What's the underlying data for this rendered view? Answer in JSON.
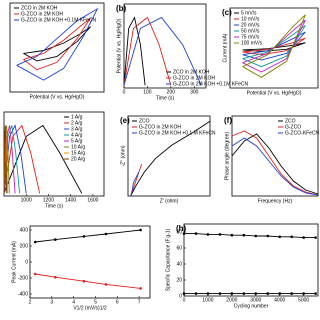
{
  "chart_data": [
    {
      "type": "line",
      "xlabel": "Potential (V vs. Hg/HgO)",
      "xlim": [
        -0.1,
        0.6
      ],
      "ylim": [
        -30,
        30
      ],
      "legend": "upper left",
      "series": [
        {
          "name": "ZCO in 2M KOH",
          "color": "#000000",
          "x": [
            0,
            0.15,
            0.3,
            0.42,
            0.5,
            0.4,
            0.25,
            0.1,
            0
          ],
          "values": [
            -4,
            -2,
            3,
            9,
            14,
            4,
            -6,
            -9,
            -4
          ]
        },
        {
          "name": "G-ZCO in 2M KOH",
          "color": "#e0201b",
          "x": [
            0,
            0.15,
            0.3,
            0.42,
            0.5,
            0.4,
            0.25,
            0.1,
            0
          ],
          "values": [
            -8,
            -4,
            5,
            14,
            20,
            6,
            -10,
            -15,
            -8
          ]
        },
        {
          "name": "G-ZCO in 2M KOH +0.1M KFeCN",
          "color": "#1f3fd0",
          "x": [
            -0.05,
            0.1,
            0.25,
            0.4,
            0.55,
            0.45,
            0.3,
            0.15,
            -0.05
          ],
          "values": [
            -12,
            -6,
            6,
            18,
            26,
            8,
            -14,
            -22,
            -12
          ]
        }
      ]
    },
    {
      "type": "line",
      "panel_label": "(b)",
      "ylabel": "Potential (V vs. Hg/HgO)",
      "xlabel": "Time (s)",
      "xlim": [
        0,
        350
      ],
      "ylim": [
        -0.02,
        0.6
      ],
      "xticks": [
        0,
        100,
        200,
        300
      ],
      "legend": "lower right",
      "series": [
        {
          "name": "ZCO in 2M KOH",
          "color": "#000000",
          "x": [
            0,
            20,
            45,
            70,
            90
          ],
          "values": [
            0,
            0.42,
            0.5,
            0.3,
            0
          ]
        },
        {
          "name": "G-ZCO in 2M KOH",
          "color": "#e0201b",
          "x": [
            0,
            40,
            100,
            150,
            200
          ],
          "values": [
            0,
            0.42,
            0.5,
            0.3,
            0
          ]
        },
        {
          "name": "G-ZCO in 2M KOH +0.1M KFeCN",
          "color": "#1f3fd0",
          "x": [
            0,
            70,
            160,
            250,
            330
          ],
          "values": [
            0,
            0.42,
            0.5,
            0.3,
            0
          ]
        }
      ]
    },
    {
      "type": "line",
      "panel_label": "(c)",
      "ylabel": "Current (mA)",
      "xlabel": "Potential (V vs. Hg/HgO)",
      "xlim": [
        -0.1,
        0.6
      ],
      "ylim": [
        -60,
        60
      ],
      "legend": "upper left",
      "series": [
        {
          "name": "5 mV/s",
          "color": "#000000",
          "x": [
            0,
            0.2,
            0.4,
            0.5,
            0.35,
            0.15,
            0
          ],
          "values": [
            -3,
            -1,
            4,
            8,
            -2,
            -5,
            -3
          ]
        },
        {
          "name": "10 mV/s",
          "color": "#e0201b",
          "x": [
            0,
            0.2,
            0.4,
            0.5,
            0.35,
            0.15,
            0
          ],
          "values": [
            -6,
            -2,
            8,
            15,
            -4,
            -10,
            -6
          ]
        },
        {
          "name": "20 mV/s",
          "color": "#1f3fd0",
          "x": [
            0,
            0.2,
            0.4,
            0.5,
            0.35,
            0.15,
            0
          ],
          "values": [
            -10,
            -4,
            14,
            24,
            -8,
            -18,
            -10
          ]
        },
        {
          "name": "50 mV/s",
          "color": "#0a9c9c",
          "x": [
            0,
            0.2,
            0.4,
            0.5,
            0.35,
            0.15,
            0
          ],
          "values": [
            -16,
            -6,
            20,
            34,
            -12,
            -28,
            -16
          ]
        },
        {
          "name": "75 mV/s",
          "color": "#c020c0",
          "x": [
            0,
            0.2,
            0.4,
            0.5,
            0.35,
            0.15,
            0
          ],
          "values": [
            -22,
            -8,
            26,
            42,
            -16,
            -36,
            -22
          ]
        },
        {
          "name": "100 mV/s",
          "color": "#808000",
          "x": [
            0,
            0.2,
            0.4,
            0.5,
            0.35,
            0.15,
            0
          ],
          "values": [
            -28,
            -10,
            32,
            50,
            -20,
            -44,
            -28
          ]
        }
      ]
    },
    {
      "type": "line",
      "xlabel": "Time (s)",
      "xlim": [
        800,
        1700
      ],
      "ylim": [
        -0.02,
        0.6
      ],
      "xticks": [
        1000,
        1200,
        1400,
        1600
      ],
      "legend": "upper right",
      "series": [
        {
          "name": "1 A/g",
          "color": "#000000",
          "x": [
            800,
            1000,
            1150,
            1300,
            1500
          ],
          "values": [
            0,
            0.42,
            0.5,
            0.3,
            0
          ]
        },
        {
          "name": "2 A/g",
          "color": "#e0201b",
          "x": [
            800,
            880,
            960,
            1040,
            1120
          ],
          "values": [
            0,
            0.42,
            0.5,
            0.3,
            0
          ]
        },
        {
          "name": "3 A/g",
          "color": "#1f3fd0",
          "x": [
            800,
            850,
            900,
            950,
            1000
          ],
          "values": [
            0,
            0.42,
            0.5,
            0.3,
            0
          ]
        },
        {
          "name": "4 A/g",
          "color": "#0a9c9c",
          "x": [
            800,
            835,
            870,
            905,
            940
          ],
          "values": [
            0,
            0.42,
            0.5,
            0.3,
            0
          ]
        },
        {
          "name": "5 A/g",
          "color": "#c020c0",
          "x": [
            800,
            825,
            850,
            875,
            900
          ],
          "values": [
            0,
            0.42,
            0.5,
            0.3,
            0
          ]
        },
        {
          "name": "10 A/g",
          "color": "#808000",
          "x": [
            800,
            812,
            824,
            836,
            848
          ],
          "values": [
            0,
            0.42,
            0.5,
            0.3,
            0
          ]
        },
        {
          "name": "15 A/g",
          "color": "#ff8c00",
          "x": [
            800,
            808,
            816,
            824,
            832
          ],
          "values": [
            0,
            0.42,
            0.5,
            0.3,
            0
          ]
        },
        {
          "name": "20 A/g",
          "color": "#7a3f00",
          "x": [
            800,
            806,
            812,
            818,
            824
          ],
          "values": [
            0,
            0.42,
            0.5,
            0.3,
            0
          ]
        }
      ]
    },
    {
      "type": "line",
      "panel_label": "(e)",
      "ylabel": "-Z'' (ohm)",
      "xlabel": "Z' (ohm)",
      "xlim": [
        0,
        30
      ],
      "ylim": [
        0,
        30
      ],
      "legend": "upper left",
      "series": [
        {
          "name": "ZCO",
          "color": "#000000",
          "x": [
            1,
            3,
            6,
            10,
            16,
            24,
            30
          ],
          "values": [
            0,
            4,
            9,
            14,
            19,
            24,
            28
          ]
        },
        {
          "name": "G-ZCO in 2M KOH",
          "color": "#e0201b",
          "x": [
            1,
            2,
            3,
            4,
            5
          ],
          "values": [
            0,
            3,
            6,
            9,
            12
          ]
        },
        {
          "name": "G-ZCO in 2M KOH +0.1 M KFeCN",
          "color": "#1f3fd0",
          "x": [
            1,
            1.5,
            2,
            3,
            4
          ],
          "values": [
            0,
            2,
            5,
            7,
            9
          ]
        }
      ]
    },
    {
      "type": "line",
      "panel_label": "(f)",
      "ylabel": "Phase angle (degree)",
      "xlabel": "Frequency (Hz)",
      "xlog": true,
      "xlim": [
        0.01,
        100000
      ],
      "ylim": [
        0,
        80
      ],
      "legend": "upper right",
      "series": [
        {
          "name": "ZCO",
          "color": "#000000",
          "x": [
            0.01,
            0.1,
            1,
            10,
            100,
            1000,
            10000,
            100000
          ],
          "values": [
            40,
            55,
            62,
            48,
            30,
            15,
            6,
            2
          ]
        },
        {
          "name": "G-ZCO",
          "color": "#e0201b",
          "x": [
            0.01,
            0.1,
            1,
            10,
            100,
            1000,
            10000,
            100000
          ],
          "values": [
            60,
            65,
            58,
            40,
            22,
            10,
            4,
            1
          ]
        },
        {
          "name": "G-ZCO-KFeCN",
          "color": "#1f3fd0",
          "x": [
            0.01,
            0.1,
            1,
            10,
            100,
            1000,
            10000,
            100000
          ],
          "values": [
            50,
            58,
            50,
            35,
            20,
            9,
            3,
            1
          ]
        }
      ]
    },
    {
      "type": "line",
      "ylabel": "Peak Current (mA)",
      "xlabel": "V1/2 (mV/s)1/2",
      "xlim": [
        2,
        7.5
      ],
      "ylim": [
        -450,
        450
      ],
      "xticks": [
        2,
        3,
        4,
        5,
        6,
        7
      ],
      "yticks": [
        -400,
        -200,
        0,
        200,
        400
      ],
      "markers": true,
      "series": [
        {
          "color": "#000000",
          "x": [
            2.24,
            3.16,
            4.47,
            5.48,
            7.07
          ],
          "values": [
            250,
            280,
            320,
            350,
            400
          ]
        },
        {
          "color": "#e0201b",
          "x": [
            2.24,
            3.16,
            4.47,
            5.48,
            7.07
          ],
          "values": [
            -150,
            -190,
            -240,
            -280,
            -330
          ]
        }
      ]
    },
    {
      "type": "line",
      "panel_label": "(h)",
      "ylabel": "Specific Capacitance (F.g-1)",
      "xlabel": "Cycling number",
      "xlim": [
        0,
        5600
      ],
      "ylim": [
        0,
        90
      ],
      "xticks": [
        0,
        1000,
        2000,
        3000,
        4000,
        5000
      ],
      "yticks": [
        0,
        20,
        40,
        60,
        80
      ],
      "markers": true,
      "series": [
        {
          "color": "#000000",
          "x": [
            0,
            500,
            1000,
            1500,
            2000,
            2500,
            3000,
            3500,
            4000,
            4500,
            5000,
            5500
          ],
          "values": [
            78,
            78,
            77,
            77,
            76,
            76,
            75,
            75,
            74,
            74,
            73,
            73
          ]
        },
        {
          "color": "#000000",
          "x": [
            0,
            500,
            1000,
            1500,
            2000,
            2500,
            3000,
            3500,
            4000,
            4500,
            5000,
            5500
          ],
          "values": [
            3,
            3,
            3,
            3,
            3,
            3,
            3,
            3,
            3,
            3,
            3,
            3
          ]
        }
      ]
    }
  ]
}
